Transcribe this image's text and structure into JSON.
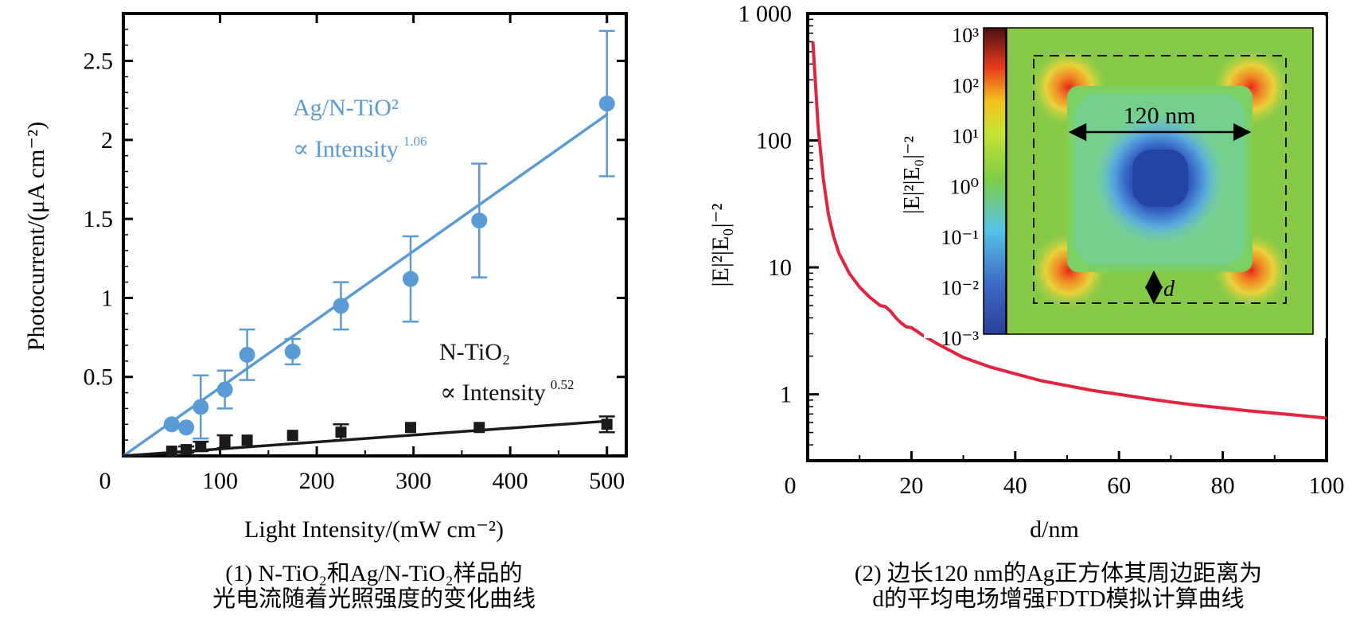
{
  "panel1": {
    "caption": [
      "(1) N-TiO₂和Ag/N-TiO₂样品的",
      "光电流随着光照强度的变化曲线"
    ],
    "axes": {
      "xlabel": "Light Intensity/(mW cm⁻²)",
      "ylabel": "Photocurrent/(μA cm⁻²)"
    }
  },
  "panel2": {
    "caption": [
      "(2) 边长120 nm的Ag正方体其周边距离为",
      "d的平均电场增强FDTD模拟计算曲线"
    ],
    "axes": {
      "xlabel": "d/nm",
      "ylabel": "|E|²|E₀|⁻²"
    },
    "inset": {
      "colorbar_label": "|E|²|E₀|⁻²",
      "colorbar_ticks": [
        "10³",
        "10²",
        "10¹",
        "10⁰",
        "10⁻¹",
        "10⁻²",
        "10⁻³"
      ],
      "dimension_label": "120 nm",
      "gap_label": "d"
    }
  },
  "chart_data": [
    {
      "type": "scatter",
      "xlim": [
        0,
        520
      ],
      "ylim": [
        0,
        2.8
      ],
      "x_ticks": [
        0,
        100,
        200,
        300,
        400,
        500
      ],
      "y_ticks": [
        0.5,
        1,
        1.5,
        2,
        2.5
      ],
      "x_tick_labels": [
        "0",
        "100",
        "200",
        "300",
        "400",
        "500"
      ],
      "y_tick_labels": [
        "0.5",
        "1",
        "1.5",
        "2",
        "2.5"
      ],
      "series": [
        {
          "name": "Ag/N-TiO²",
          "annotation": "∝ Intensity",
          "exponent": "1.06",
          "color": "#5b9bd5",
          "marker": "circle",
          "points": [
            {
              "x": 50,
              "y": 0.2,
              "err": 0
            },
            {
              "x": 65,
              "y": 0.18,
              "err": 0
            },
            {
              "x": 80,
              "y": 0.31,
              "err": 0.2
            },
            {
              "x": 105,
              "y": 0.42,
              "err": 0.12
            },
            {
              "x": 128,
              "y": 0.64,
              "err": 0.16
            },
            {
              "x": 175,
              "y": 0.66,
              "err": 0.08
            },
            {
              "x": 225,
              "y": 0.95,
              "err": 0.15
            },
            {
              "x": 297,
              "y": 1.12,
              "err": 0.27
            },
            {
              "x": 368,
              "y": 1.49,
              "err": 0.36
            },
            {
              "x": 500,
              "y": 2.23,
              "err": 0.46
            }
          ],
          "fit": [
            [
              0,
              0
            ],
            [
              500,
              2.16
            ]
          ]
        },
        {
          "name": "N-TiO₂",
          "annotation": "∝ Intensity",
          "exponent": "0.52",
          "color": "#1a1a1a",
          "marker": "square",
          "points": [
            {
              "x": 50,
              "y": 0.03,
              "err": 0
            },
            {
              "x": 65,
              "y": 0.04,
              "err": 0.02
            },
            {
              "x": 80,
              "y": 0.06,
              "err": 0.03
            },
            {
              "x": 105,
              "y": 0.09,
              "err": 0.04
            },
            {
              "x": 128,
              "y": 0.1,
              "err": 0
            },
            {
              "x": 175,
              "y": 0.13,
              "err": 0
            },
            {
              "x": 225,
              "y": 0.15,
              "err": 0.05
            },
            {
              "x": 297,
              "y": 0.18,
              "err": 0
            },
            {
              "x": 368,
              "y": 0.18,
              "err": 0
            },
            {
              "x": 500,
              "y": 0.2,
              "err": 0.05
            }
          ],
          "fit": [
            [
              0,
              0
            ],
            [
              500,
              0.22
            ]
          ]
        }
      ]
    },
    {
      "type": "line",
      "log_y": true,
      "xlim": [
        0,
        100
      ],
      "ylim": [
        0.3,
        1000
      ],
      "x_ticks": [
        0,
        20,
        40,
        60,
        80,
        100
      ],
      "x_tick_labels": [
        "0",
        "20",
        "40",
        "60",
        "80",
        "100"
      ],
      "y_ticks": [
        1,
        10,
        100,
        1000
      ],
      "y_tick_labels": [
        "1",
        "10",
        "100",
        "1 000"
      ],
      "series": [
        {
          "color": "#e3233e",
          "x": [
            1,
            1.5,
            2,
            3,
            4,
            5,
            6,
            8,
            10,
            12,
            14,
            15,
            16,
            17,
            18,
            19,
            20,
            21,
            22,
            25,
            30,
            35,
            40,
            45,
            50,
            55,
            60,
            65,
            70,
            75,
            80,
            85,
            90,
            95,
            100
          ],
          "y": [
            600,
            280,
            130,
            50,
            26,
            17.5,
            13,
            9,
            7,
            5.8,
            5,
            4.9,
            4.5,
            4.0,
            3.65,
            3.4,
            3.35,
            3.15,
            2.95,
            2.5,
            1.95,
            1.65,
            1.45,
            1.28,
            1.17,
            1.07,
            1.0,
            0.93,
            0.87,
            0.82,
            0.78,
            0.74,
            0.71,
            0.68,
            0.65
          ]
        }
      ]
    }
  ]
}
